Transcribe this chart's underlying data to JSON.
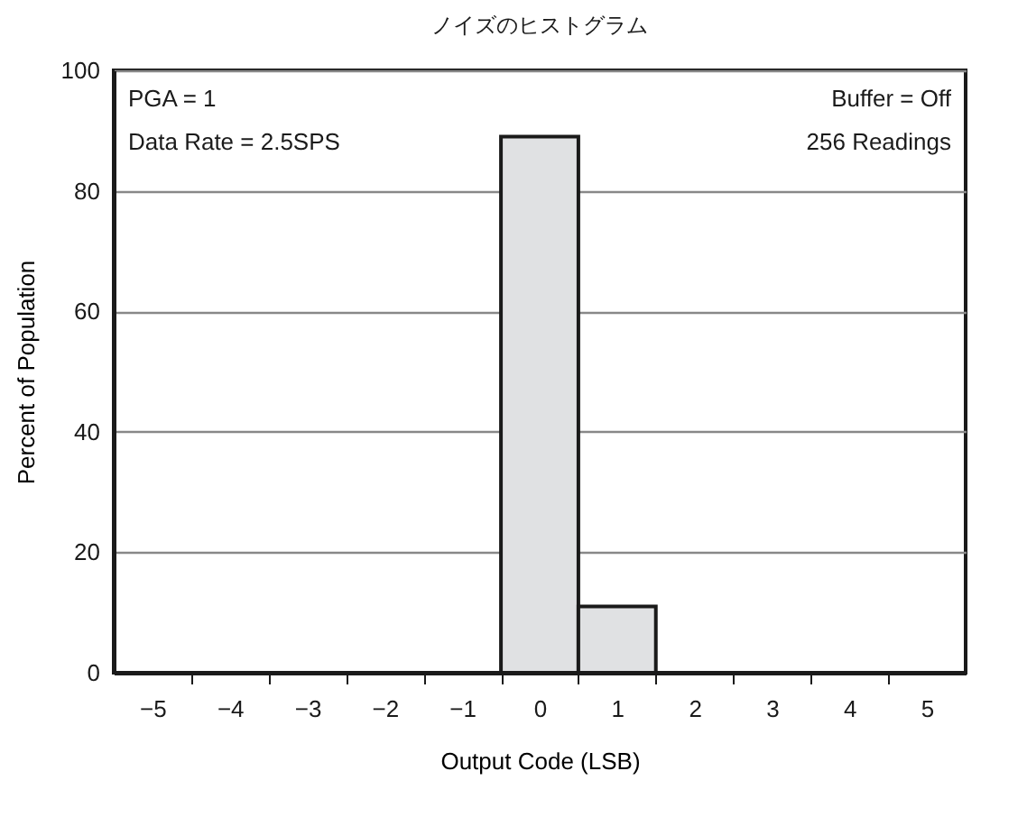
{
  "chart_data": {
    "type": "histogram",
    "title": "ノイズのヒストグラム",
    "xlabel": "Output Code (LSB)",
    "ylabel": "Percent of Population",
    "annotations": [
      "PGA = 1",
      "Data Rate = 2.5SPS",
      "Buffer = Off",
      "256 Readings"
    ],
    "bins": [
      -5.5,
      -4.5,
      -3.5,
      -2.5,
      -1.5,
      -0.5,
      0.5,
      1.5,
      2.5,
      3.5,
      4.5,
      5.5
    ],
    "values": [
      0,
      0,
      0,
      0,
      0,
      89,
      11,
      0,
      0,
      0,
      0
    ],
    "color": "#e0e1e3",
    "xlim": [
      -5.5,
      5.5
    ],
    "xticks": [
      {
        "value": -5,
        "label": "−5"
      },
      {
        "value": -4,
        "label": "−4"
      },
      {
        "value": -3,
        "label": "−3"
      },
      {
        "value": -2,
        "label": "−2"
      },
      {
        "value": -1,
        "label": "−1"
      },
      0,
      1,
      2,
      3,
      4,
      5,
      {
        "value": -4.5,
        "label": null
      },
      {
        "value": -3.5,
        "label": null
      },
      {
        "value": -2.5,
        "label": null
      },
      {
        "value": -1.5,
        "label": null
      },
      {
        "value": -0.5,
        "label": null
      },
      {
        "value": 0.5,
        "label": null
      },
      {
        "value": 1.5,
        "label": null
      },
      {
        "value": 2.5,
        "label": null
      },
      {
        "value": 3.5,
        "label": null
      },
      {
        "value": 4.5,
        "label": null
      }
    ],
    "ylim": [
      0,
      100
    ],
    "yticks": [
      0,
      20,
      40,
      60,
      80,
      100
    ],
    "grid": "y"
  }
}
